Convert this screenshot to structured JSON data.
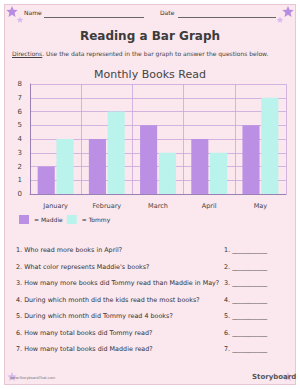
{
  "header": {
    "name": "Name",
    "date": "Date",
    "title": "Reading a Bar Graph",
    "directions": {
      "label": "Directions",
      "text": ". Use the data represented in the bar graph to answer the questions below."
    }
  },
  "chart_data": {
    "type": "bar",
    "title": "Monthly Books Read",
    "categories": [
      "January",
      "February",
      "March",
      "April",
      "May"
    ],
    "series": [
      {
        "name": "= Maddie",
        "color": "#bb8fe3",
        "values": [
          2,
          4,
          5,
          4,
          5
        ]
      },
      {
        "name": "= Tommy",
        "color": "#b9f3ec",
        "values": [
          4,
          6,
          3,
          3,
          7
        ]
      }
    ],
    "ylim": [
      0,
      8
    ],
    "yticks": [
      0,
      1,
      2,
      3,
      4,
      5,
      6,
      7,
      8
    ],
    "grid": true,
    "legend": "lower left"
  },
  "questions": [
    {
      "text": "1. Who read more books in April?",
      "blank": "1. ___________"
    },
    {
      "text": "2. What color represents Maddie's books?",
      "blank": "2. ___________"
    },
    {
      "text": "3. How many more books did Tommy read than Maddie in May?",
      "blank": "3. ___________"
    },
    {
      "text": "4. During which month did the kids read the most books?",
      "blank": "4. ___________"
    },
    {
      "text": "5. During which month did Tommy read 4 books?",
      "blank": "5. ___________"
    },
    {
      "text": "6. How many total books did Tommy read?",
      "blank": "6. ___________"
    },
    {
      "text": "7. How many total books did Maddie read?",
      "blank": "7. ___________"
    }
  ],
  "footer": {
    "left": "www.StoryboardThat.com",
    "right": "Storyboard"
  }
}
